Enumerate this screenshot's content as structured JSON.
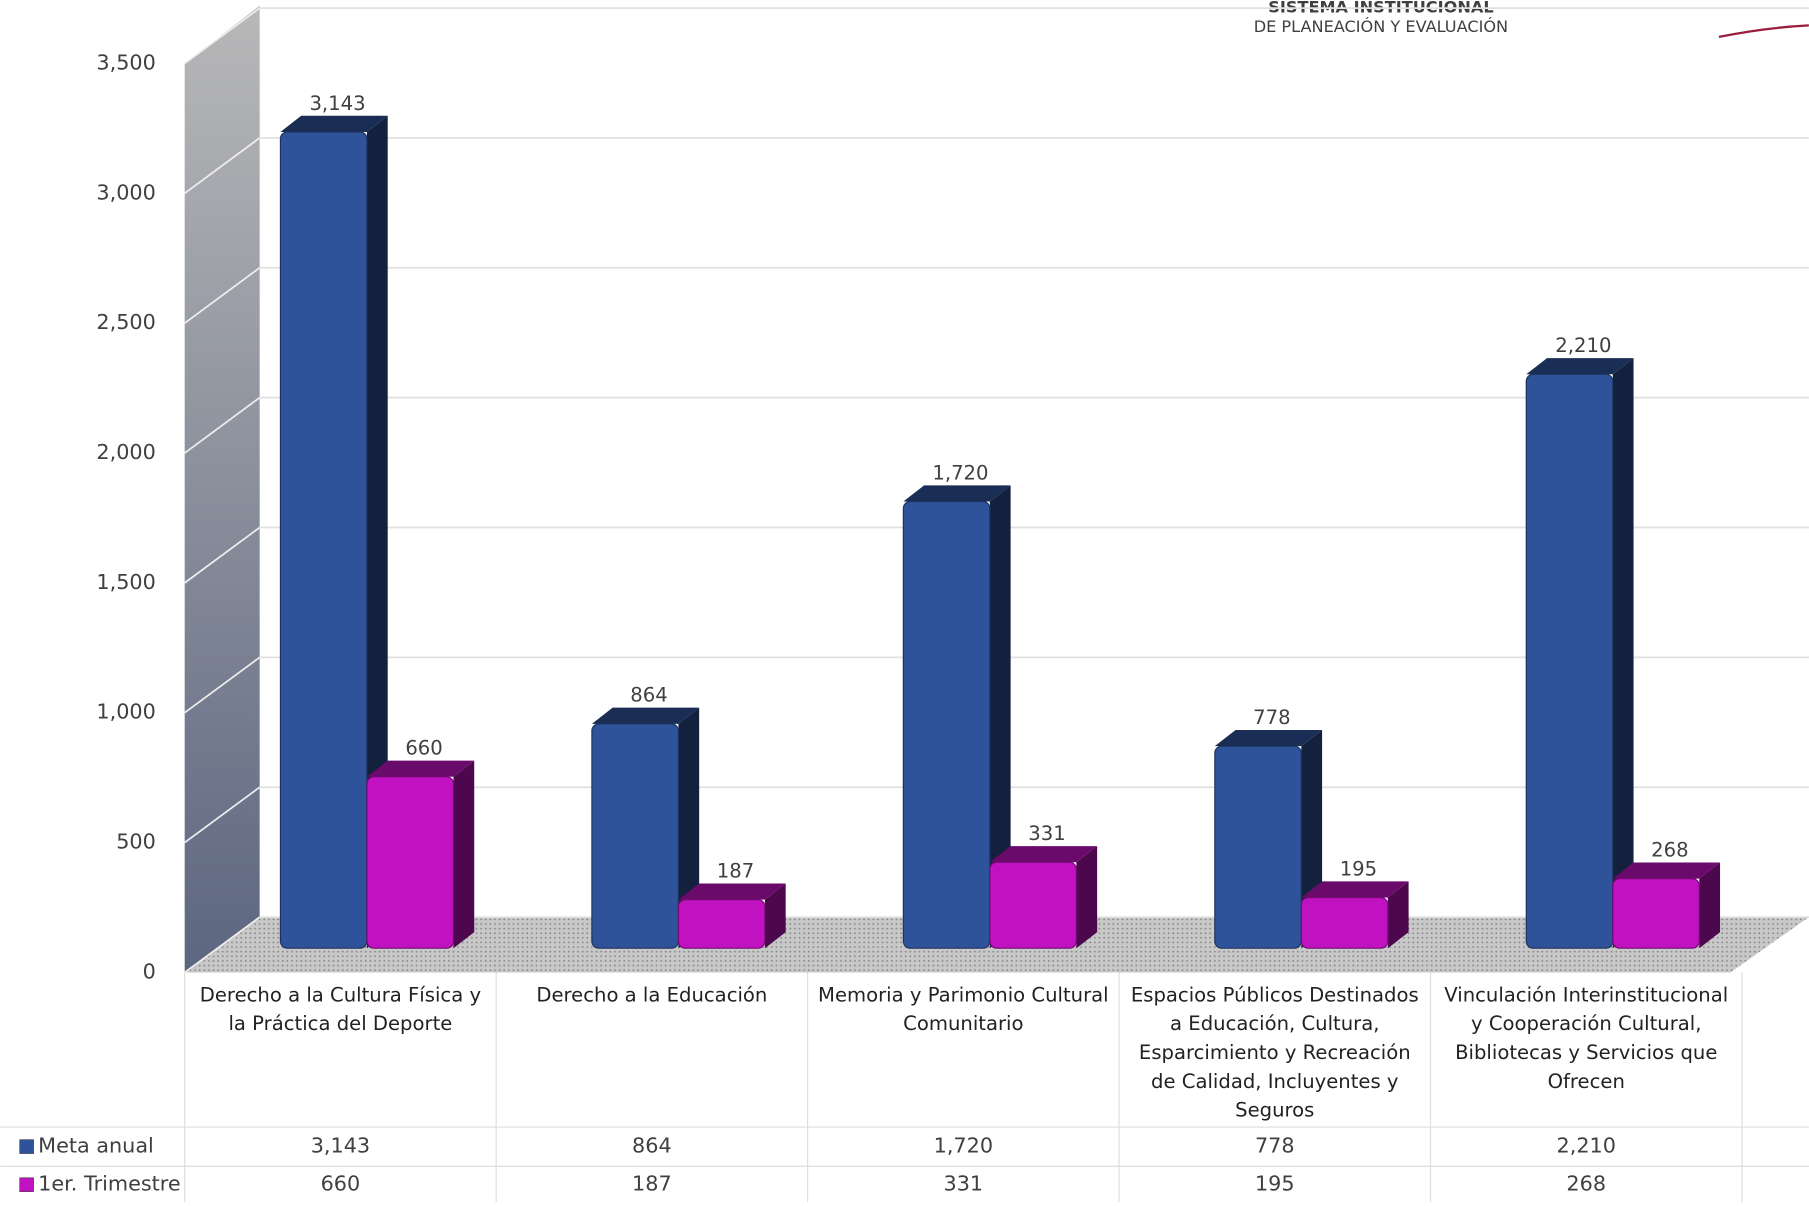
{
  "header": {
    "line1": "SISTEMA INSTITUCIONAL",
    "line2": "DE PLANEACIÓN Y EVALUACIÓN"
  },
  "chart_data": {
    "type": "bar3d",
    "categories": [
      "Derecho a la Cultura Física y la Práctica del Deporte",
      "Derecho a la Educación",
      "Memoria y Parimonio Cultural Comunitario",
      "Espacios Públicos Destinados a Educación, Cultura, Esparcimiento y Recreación de Calidad, Incluyentes y Seguros",
      "Vinculación Interinstitucional y Cooperación Cultural, Bibliotecas y Servicios que Ofrecen"
    ],
    "series": [
      {
        "name": "Meta anual",
        "color": "#2f539b",
        "values": [
          3143,
          864,
          1720,
          778,
          2210
        ],
        "value_labels": [
          "3,143",
          "864",
          "1,720",
          "778",
          "2,210"
        ]
      },
      {
        "name": "1er. Trimestre",
        "color": "#c012c0",
        "values": [
          660,
          187,
          331,
          195,
          268
        ],
        "value_labels": [
          "660",
          "187",
          "331",
          "195",
          "268"
        ]
      }
    ],
    "ylim": [
      0,
      3500
    ],
    "yticks": [
      0,
      500,
      {
        "value": 1000,
        "label": "1,000"
      },
      {
        "value": 1500,
        "label": "1,500"
      },
      {
        "value": 2000,
        "label": "2,000"
      },
      {
        "value": 2500,
        "label": "2,500"
      },
      {
        "value": 3000,
        "label": "3,000"
      },
      {
        "value": 3500,
        "label": "3,500"
      }
    ],
    "grid": true,
    "data_table": true
  }
}
